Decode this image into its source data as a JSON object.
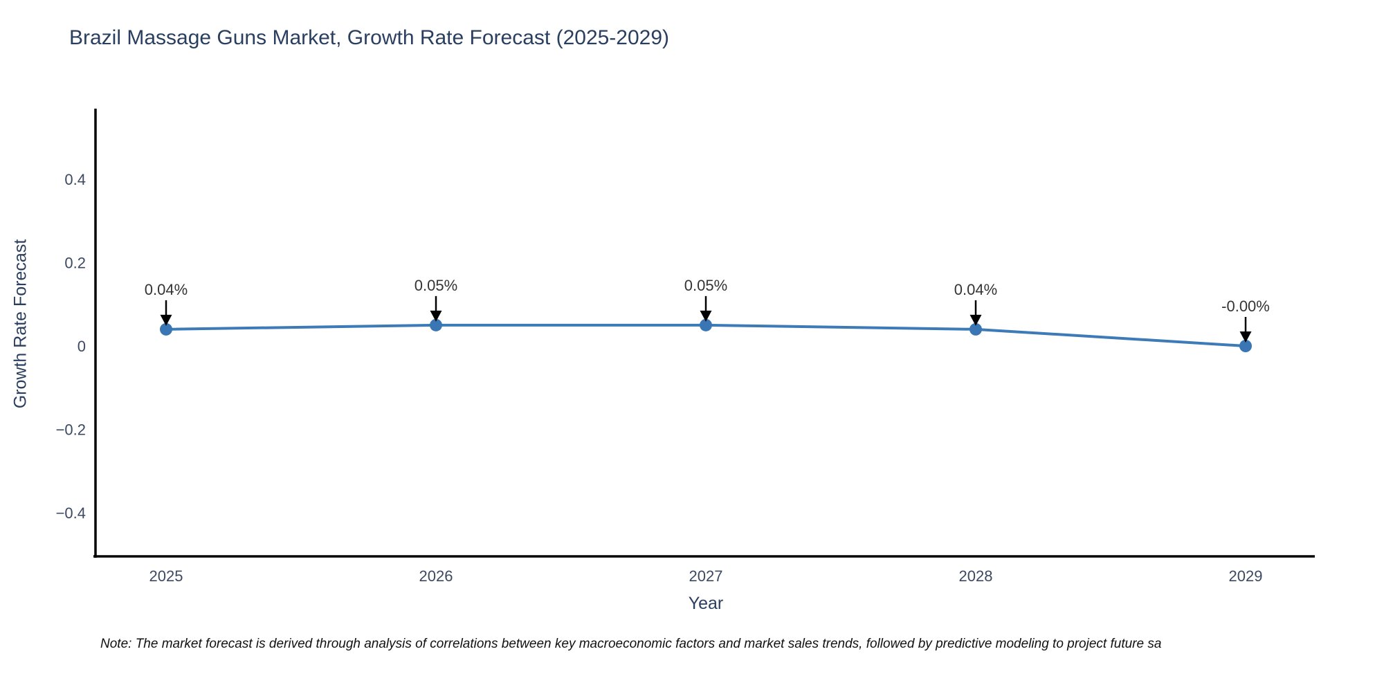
{
  "page": {
    "note": "Note: The market forecast is derived through analysis of correlations between key macroeconomic factors and market sales trends, followed by predictive modeling to project future sa"
  },
  "chart_data": {
    "type": "line",
    "title": "Brazil Massage Guns Market, Growth Rate Forecast (2025-2029)",
    "xlabel": "Year",
    "ylabel": "Growth Rate Forecast",
    "x": [
      2025,
      2026,
      2027,
      2028,
      2029
    ],
    "x_tick_labels": [
      "2025",
      "2026",
      "2027",
      "2028",
      "2029"
    ],
    "series": [
      {
        "name": "Growth Rate Forecast",
        "values": [
          0.04,
          0.05,
          0.05,
          0.04,
          -0.0
        ],
        "point_labels": [
          "0.04%",
          "0.05%",
          "0.05%",
          "0.04%",
          "-0.00%"
        ]
      }
    ],
    "y_ticks": [
      0.4,
      0.2,
      0,
      -0.2,
      -0.4
    ],
    "y_tick_labels": [
      "0.4",
      "0.2",
      "0",
      "−0.2",
      "−0.4"
    ],
    "ylim": [
      -0.5,
      0.56
    ],
    "grid": false,
    "legend": false,
    "colors": {
      "line": "#3d7ab8",
      "marker": "#3a76b3",
      "axis": "#000000",
      "title_text": "#2a3f5f",
      "tick_text": "#3c4963",
      "annotation_text": "#333333",
      "arrow": "#000000",
      "background": "#ffffff"
    }
  }
}
